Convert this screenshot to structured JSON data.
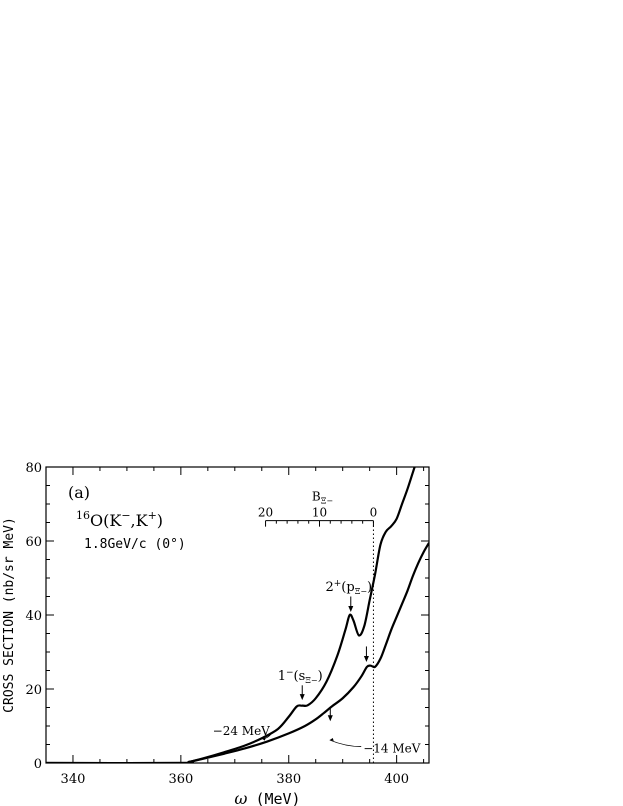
{
  "chart_data": {
    "type": "line",
    "panel_label": "(a)",
    "reaction": {
      "prefix": "16",
      "main": "O(K",
      "sup1": "−",
      "mid": ",K",
      "sup2": "+",
      "end": ")"
    },
    "beam": "1.8GeV/c (0°)",
    "xlabel_symbol": "ω",
    "xlabel_unit": "(MeV)",
    "ylabel": "CROSS SECTION (nb/sr MeV)",
    "xlim": [
      335,
      406
    ],
    "ylim": [
      0,
      80
    ],
    "x_ticks": [
      "340",
      "360",
      "380",
      "400"
    ],
    "y_ticks": [
      "0",
      "20",
      "40",
      "60",
      "80"
    ],
    "threshold_omega": 395.7,
    "series": [
      {
        "name": "−24 MeV",
        "x": [
          335,
          360,
          361.5,
          364,
          368,
          372,
          375,
          378,
          380,
          381.5,
          382.5,
          383.5,
          385,
          387,
          389,
          390.5,
          391.3,
          392,
          393,
          394,
          395,
          396,
          397,
          398,
          399,
          400,
          401,
          402,
          403,
          404
        ],
        "y": [
          0,
          0,
          0.3,
          1.2,
          2.9,
          4.8,
          6.7,
          9.2,
          12.5,
          15.3,
          15.5,
          15.6,
          17.5,
          22,
          29,
          36,
          40,
          38.5,
          34.5,
          37,
          44,
          51,
          59,
          62.5,
          64,
          66,
          70,
          74,
          78.5,
          83
        ]
      },
      {
        "name": "−14 MeV",
        "x": [
          335,
          360,
          361.5,
          364,
          368,
          372,
          376,
          380,
          383,
          385,
          386.5,
          388,
          390,
          392,
          393.5,
          394.5,
          395.2,
          396,
          397,
          398,
          399,
          400,
          401,
          402,
          403,
          404,
          405,
          406
        ],
        "y": [
          0,
          0,
          0.3,
          1.1,
          2.5,
          4,
          5.8,
          8,
          10,
          11.8,
          13.5,
          15.3,
          17.5,
          20.5,
          23.5,
          26,
          26.3,
          26,
          28.2,
          32,
          36,
          39.5,
          43,
          46.5,
          50.5,
          54,
          57,
          59.5
        ]
      }
    ],
    "arrows": [
      {
        "x": 382.5,
        "y_from": 21,
        "y_to": 17
      },
      {
        "x": 387.7,
        "y_from": 15.2,
        "y_to": 11.3
      },
      {
        "x": 391.5,
        "y_from": 45,
        "y_to": 40.8
      },
      {
        "x": 394.4,
        "y_from": 31.5,
        "y_to": 27.3
      }
    ],
    "annotations": [
      {
        "text_main": "2",
        "text_sup": "+",
        "text_paren": "(p",
        "text_sub": "Ξ−",
        "text_close": ")",
        "x": 391.5,
        "y": 46.5
      },
      {
        "text_main": "1",
        "text_sup": "−",
        "text_paren": "(s",
        "text_sub": "Ξ−",
        "text_close": ")",
        "x": 382.5,
        "y": 22.5
      }
    ],
    "curve_labels": [
      {
        "text": "−24 MeV",
        "x": 376.5,
        "y": 8.6,
        "leader_to_x": 375,
        "leader_to_y": 6.6
      },
      {
        "text": "−14 MeV",
        "x": 393.8,
        "y": 3.9,
        "leader_to_x": 387.6,
        "leader_to_y": 6.2
      }
    ],
    "b_axis": {
      "label_main": "B",
      "label_sub": "Ξ−",
      "ticks": [
        "20",
        "10",
        "0"
      ],
      "ticks_omega": [
        375.7,
        385.7,
        395.7
      ],
      "range_omega": [
        375.7,
        395.7
      ],
      "y": 65.5
    }
  }
}
